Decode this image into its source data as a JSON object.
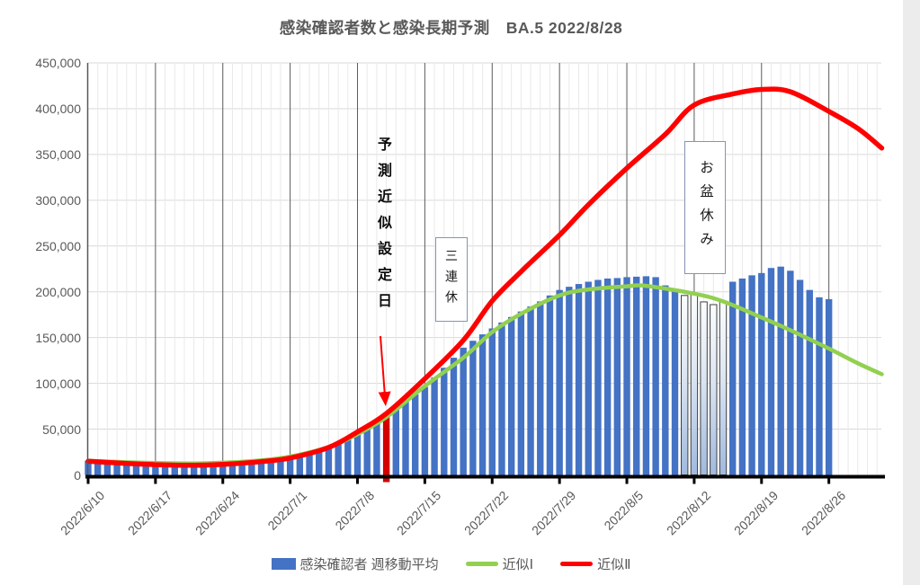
{
  "title": "感染確認者数と感染長期予測　BA.5 2022/8/28",
  "colors": {
    "bar": "#4472C4",
    "bar_red": "#D40000",
    "holiday_top": "#fbfdfe",
    "holiday_mid": "#dbe5f2",
    "holiday_bottom": "#a0b9de",
    "holiday_border": "#3f3f3f",
    "approx1_green": "#92D050",
    "approx2_red": "#FF0000",
    "grid_minor": "#e9e9e9",
    "grid_weekly": "#5a5a5a",
    "grid_horizontal": "#d9d9d9",
    "axis_x": "#000000",
    "axis_y": "#595959",
    "label_text": "#595959",
    "annotation_box_border": "#8496B0"
  },
  "chart_data": {
    "type": "bar",
    "title": "感染確認者数と感染長期予測　BA.5 2022/8/28",
    "xlabel": "",
    "ylabel": "",
    "ylim": [
      0,
      450000
    ],
    "ytick_interval": 50000,
    "grid": "horizontal 50k lines, daily minor vertical lines, weekly dark vertical lines",
    "legend_position": "bottom",
    "y_tick_labels": [
      "450,000",
      "400,000",
      "350,000",
      "300,000",
      "250,000",
      "200,000",
      "150,000",
      "100,000",
      "50,000",
      "0"
    ],
    "x_tick_labels": [
      "2022/6/10",
      "2022/6/17",
      "2022/6/24",
      "2022/7/1",
      "2022/7/8",
      "2022/7/15",
      "2022/7/22",
      "2022/7/29",
      "2022/8/5",
      "2022/8/12",
      "2022/8/19",
      "2022/8/26"
    ],
    "x_tick_interval_days": 7,
    "bar_series": {
      "name": "感染確認者 週移動平均",
      "dates": [
        "6/10",
        "6/11",
        "6/12",
        "6/13",
        "6/14",
        "6/15",
        "6/16",
        "6/17",
        "6/18",
        "6/19",
        "6/20",
        "6/21",
        "6/22",
        "6/23",
        "6/24",
        "6/25",
        "6/26",
        "6/27",
        "6/28",
        "6/29",
        "6/30",
        "7/1",
        "7/2",
        "7/3",
        "7/4",
        "7/5",
        "7/6",
        "7/7",
        "7/8",
        "7/9",
        "7/10",
        "7/11",
        "7/12",
        "7/13",
        "7/14",
        "7/15",
        "7/16",
        "7/17",
        "7/18",
        "7/19",
        "7/20",
        "7/21",
        "7/22",
        "7/23",
        "7/24",
        "7/25",
        "7/26",
        "7/27",
        "7/28",
        "7/29",
        "7/30",
        "7/31",
        "8/1",
        "8/2",
        "8/3",
        "8/4",
        "8/5",
        "8/6",
        "8/7",
        "8/8",
        "8/9",
        "8/10",
        "8/11",
        "8/12",
        "8/13",
        "8/14",
        "8/15",
        "8/16",
        "8/17",
        "8/18",
        "8/19",
        "8/20",
        "8/21",
        "8/22",
        "8/23",
        "8/24",
        "8/25",
        "8/26"
      ],
      "values": [
        15500,
        14700,
        14000,
        13400,
        13000,
        12700,
        12500,
        12400,
        12400,
        12500,
        12600,
        12800,
        13100,
        13500,
        14000,
        14600,
        15300,
        16100,
        17100,
        18300,
        19700,
        21300,
        23100,
        25100,
        27400,
        30500,
        34500,
        39000,
        44000,
        50000,
        57000,
        65000,
        72500,
        80000,
        88000,
        96000,
        106500,
        117000,
        128000,
        139000,
        146500,
        153500,
        160000,
        166500,
        172500,
        178500,
        184000,
        189500,
        196000,
        202000,
        205500,
        208500,
        211000,
        213000,
        214500,
        215000,
        216000,
        216500,
        217000,
        216000,
        207000,
        201000,
        196000,
        197000,
        189000,
        186000,
        189000,
        211000,
        214500,
        218000,
        220500,
        226000,
        227500,
        223000,
        213000,
        202000,
        194000,
        192000
      ],
      "red_bar_date": "7/11",
      "holiday_bar_dates": [
        "8/11",
        "8/12",
        "8/13",
        "8/14",
        "8/15"
      ]
    },
    "line_series": [
      {
        "name": "近似Ⅰ",
        "color": "#92D050",
        "points": [
          [
            0,
            15500
          ],
          [
            4,
            13800
          ],
          [
            7,
            13000
          ],
          [
            11,
            12600
          ],
          [
            14,
            13300
          ],
          [
            18,
            16000
          ],
          [
            21,
            20000
          ],
          [
            25,
            30500
          ],
          [
            28,
            44500
          ],
          [
            31,
            63000
          ],
          [
            35,
            97000
          ],
          [
            39,
            128000
          ],
          [
            42,
            156000
          ],
          [
            45,
            176000
          ],
          [
            49,
            196000
          ],
          [
            52,
            202500
          ],
          [
            56,
            206000
          ],
          [
            58,
            206500
          ],
          [
            63,
            198000
          ],
          [
            66,
            189500
          ],
          [
            70,
            172000
          ],
          [
            73,
            158000
          ],
          [
            77,
            138000
          ],
          [
            80,
            122000
          ],
          [
            82.5,
            110000
          ]
        ]
      },
      {
        "name": "近似Ⅱ",
        "color": "#FF0000",
        "points": [
          [
            0,
            15000
          ],
          [
            4,
            12500
          ],
          [
            7,
            11200
          ],
          [
            11,
            10500
          ],
          [
            14,
            11500
          ],
          [
            18,
            14500
          ],
          [
            21,
            18500
          ],
          [
            25,
            30000
          ],
          [
            28,
            47000
          ],
          [
            31,
            67000
          ],
          [
            35,
            105000
          ],
          [
            39,
            147000
          ],
          [
            42,
            190000
          ],
          [
            45,
            222000
          ],
          [
            49,
            262000
          ],
          [
            52,
            295000
          ],
          [
            56,
            335000
          ],
          [
            60,
            372000
          ],
          [
            63,
            404000
          ],
          [
            67,
            416000
          ],
          [
            70,
            421000
          ],
          [
            73,
            418500
          ],
          [
            77,
            397000
          ],
          [
            80,
            378500
          ],
          [
            82.5,
            357000
          ]
        ]
      }
    ],
    "annotations": {
      "pred": {
        "text": "予測近似設定日",
        "arrow_to_date": "7/11"
      },
      "sanrenkyu": {
        "text": "三連休",
        "dates": "7/16-7/18"
      },
      "obon": {
        "text": "お盆休み",
        "dates": "8/11-8/15"
      }
    }
  }
}
